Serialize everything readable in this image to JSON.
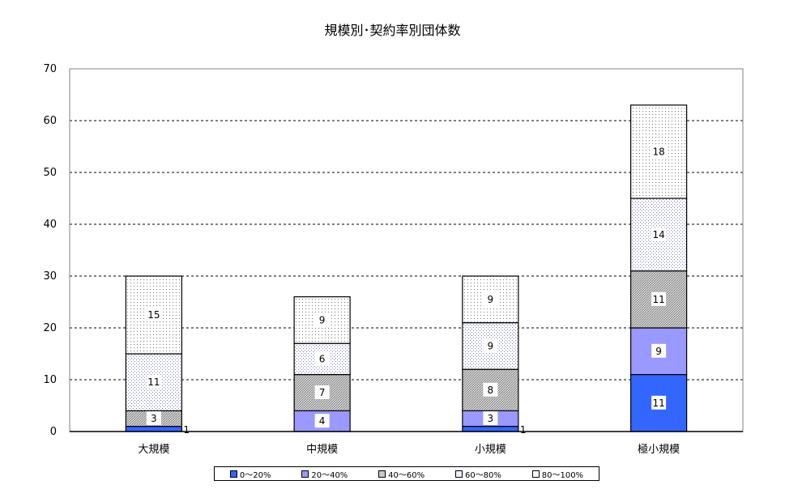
{
  "chart_data": {
    "type": "bar",
    "stacked": true,
    "title": "規模別･契約率別団体数",
    "xlabel": "",
    "ylabel": "",
    "ylim": [
      0,
      70
    ],
    "yticks": [
      0,
      10,
      20,
      30,
      40,
      50,
      60,
      70
    ],
    "grid": true,
    "legend_position": "bottom",
    "categories": [
      "大規模",
      "中規模",
      "小規模",
      "極小規模"
    ],
    "series": [
      {
        "name": "0～20%",
        "values": [
          1,
          0,
          1,
          11
        ],
        "color": "#3366ff"
      },
      {
        "name": "20～40%",
        "values": [
          0,
          4,
          3,
          9
        ],
        "color": "#9999ff"
      },
      {
        "name": "40～60%",
        "values": [
          3,
          7,
          8,
          11
        ],
        "color": "#c8c8c8"
      },
      {
        "name": "60～80%",
        "values": [
          11,
          6,
          9,
          14
        ],
        "color": "#eeeeff"
      },
      {
        "name": "80～100%",
        "values": [
          15,
          9,
          9,
          18
        ],
        "color": "#f6f6f6"
      }
    ]
  }
}
